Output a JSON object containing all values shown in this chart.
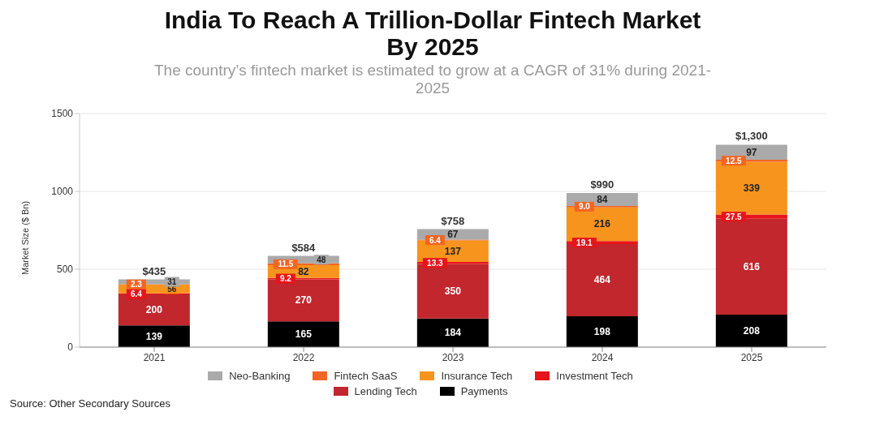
{
  "chart_data": {
    "type": "bar",
    "title": "India To Reach A Trillion-Dollar Fintech Market By 2025",
    "subtitle": "The country’s fintech market is estimated to grow at a CAGR of 31% during 2021-2025",
    "ylabel": "Market Size ($ Bn)",
    "categories": [
      "2021",
      "2022",
      "2023",
      "2024",
      "2025"
    ],
    "stacked": true,
    "series": [
      {
        "name": "Payments",
        "color": "#000000",
        "values": [
          139,
          165,
          184,
          198,
          208
        ]
      },
      {
        "name": "Lending Tech",
        "color": "#c1272d",
        "values": [
          200,
          270,
          350,
          464,
          616
        ]
      },
      {
        "name": "Investment Tech",
        "color": "#e8141b",
        "values": [
          6.4,
          9.2,
          13.3,
          19.1,
          27.5
        ]
      },
      {
        "name": "Insurance Tech",
        "color": "#f7941d",
        "values": [
          56,
          82,
          137,
          216,
          339
        ]
      },
      {
        "name": "Fintech SaaS",
        "color": "#f26522",
        "values": [
          2.3,
          11.5,
          6.4,
          9.0,
          12.5
        ],
        "value_labels": [
          "2.3",
          "11.5",
          "6.4",
          "9.0",
          "12.5"
        ]
      },
      {
        "name": "Neo-Banking",
        "color": "#aaaaaa",
        "values": [
          31,
          48,
          67,
          84,
          97
        ]
      }
    ],
    "totals": [
      "$435",
      "$584",
      "$758",
      "$990",
      "$1,300"
    ],
    "data_labels": true,
    "ylim": [
      0,
      1500
    ],
    "yticks": [
      0,
      500,
      1000,
      1500
    ],
    "grid": "y",
    "legend": "bottom",
    "annotations": [
      "Source: Other Secondary Sources"
    ]
  }
}
